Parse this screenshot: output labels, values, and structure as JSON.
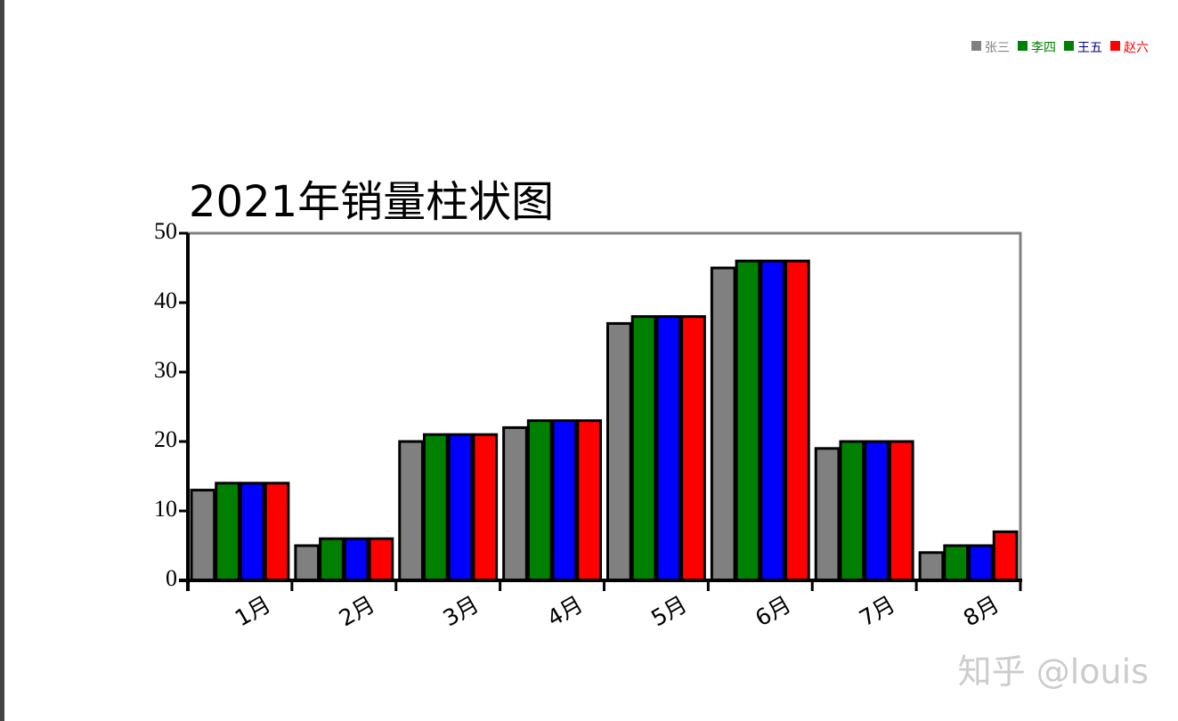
{
  "chart_data": {
    "type": "bar",
    "title": "2021年销量柱状图",
    "categories": [
      "1月",
      "2月",
      "3月",
      "4月",
      "5月",
      "6月",
      "7月",
      "8月"
    ],
    "series": [
      {
        "name": "张三",
        "color": "#808080",
        "legend_marker_color": "#808080",
        "legend_text_color": "#808080",
        "values": [
          13,
          5,
          20,
          22,
          37,
          45,
          19,
          4
        ]
      },
      {
        "name": "李四",
        "color": "#008000",
        "legend_marker_color": "#008000",
        "legend_text_color": "#008000",
        "values": [
          14,
          6,
          21,
          23,
          38,
          46,
          20,
          5
        ]
      },
      {
        "name": "王五",
        "color": "#0000ff",
        "legend_marker_color": "#008000",
        "legend_text_color": "#000080",
        "values": [
          14,
          6,
          21,
          23,
          38,
          46,
          20,
          5
        ]
      },
      {
        "name": "赵六",
        "color": "#ff0000",
        "legend_marker_color": "#ff0000",
        "legend_text_color": "#ff0000",
        "values": [
          14,
          6,
          21,
          23,
          38,
          46,
          20,
          7
        ]
      }
    ],
    "ylim": [
      0,
      50
    ],
    "yticks": [
      0,
      10,
      20,
      30,
      40,
      50
    ],
    "legend": "top-right",
    "watermark": "知乎 @louis"
  }
}
